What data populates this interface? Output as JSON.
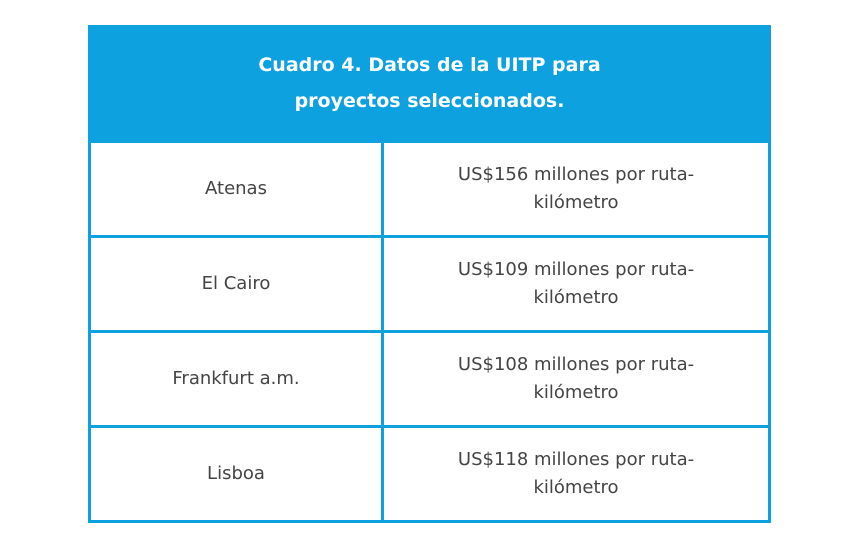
{
  "table": {
    "title": "Cuadro 4. Datos de la UITP para proyectos seleccionados.",
    "rows": [
      [
        "Atenas",
        "US$156 millones por ruta-kilómetro"
      ],
      [
        "El Cairo",
        "US$109 millones por ruta-kilómetro"
      ],
      [
        "Frankfurt a.m.",
        "US$108 millones por ruta-kilómetro"
      ],
      [
        "Lisboa",
        "US$118 millones por ruta-kilómetro"
      ]
    ]
  }
}
